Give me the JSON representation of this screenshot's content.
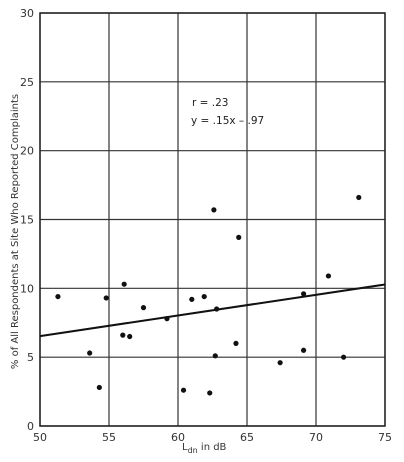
{
  "chart_data": {
    "type": "scatter",
    "xlabel_main": "L",
    "xlabel_sub": "dn",
    "xlabel_suffix": " in dB",
    "ylabel": "% of All Respondents at Site Who Reported Complaints",
    "xlim": [
      50,
      75
    ],
    "ylim": [
      0,
      30
    ],
    "xticks": [
      50,
      55,
      60,
      65,
      70,
      75
    ],
    "yticks": [
      0,
      5,
      10,
      15,
      20,
      25,
      30
    ],
    "grid": true,
    "annotations": [
      "r = .23",
      "y = .15x – .97"
    ],
    "fit_line": {
      "slope": 0.15,
      "intercept": -0.97
    },
    "points": [
      {
        "x": 51.3,
        "y": 9.4
      },
      {
        "x": 53.6,
        "y": 5.3
      },
      {
        "x": 54.3,
        "y": 2.8
      },
      {
        "x": 54.8,
        "y": 9.3
      },
      {
        "x": 56.0,
        "y": 6.6
      },
      {
        "x": 56.1,
        "y": 10.3
      },
      {
        "x": 56.5,
        "y": 6.5
      },
      {
        "x": 57.5,
        "y": 8.6
      },
      {
        "x": 59.2,
        "y": 7.8
      },
      {
        "x": 60.4,
        "y": 2.6
      },
      {
        "x": 61.0,
        "y": 9.2
      },
      {
        "x": 61.9,
        "y": 9.4
      },
      {
        "x": 62.3,
        "y": 2.4
      },
      {
        "x": 62.6,
        "y": 15.7
      },
      {
        "x": 62.7,
        "y": 5.1
      },
      {
        "x": 62.8,
        "y": 8.5
      },
      {
        "x": 64.2,
        "y": 6.0
      },
      {
        "x": 64.4,
        "y": 13.7
      },
      {
        "x": 67.4,
        "y": 4.6
      },
      {
        "x": 69.1,
        "y": 9.6
      },
      {
        "x": 69.1,
        "y": 5.5
      },
      {
        "x": 70.9,
        "y": 10.9
      },
      {
        "x": 72.0,
        "y": 5.0
      },
      {
        "x": 73.1,
        "y": 16.6
      }
    ]
  }
}
